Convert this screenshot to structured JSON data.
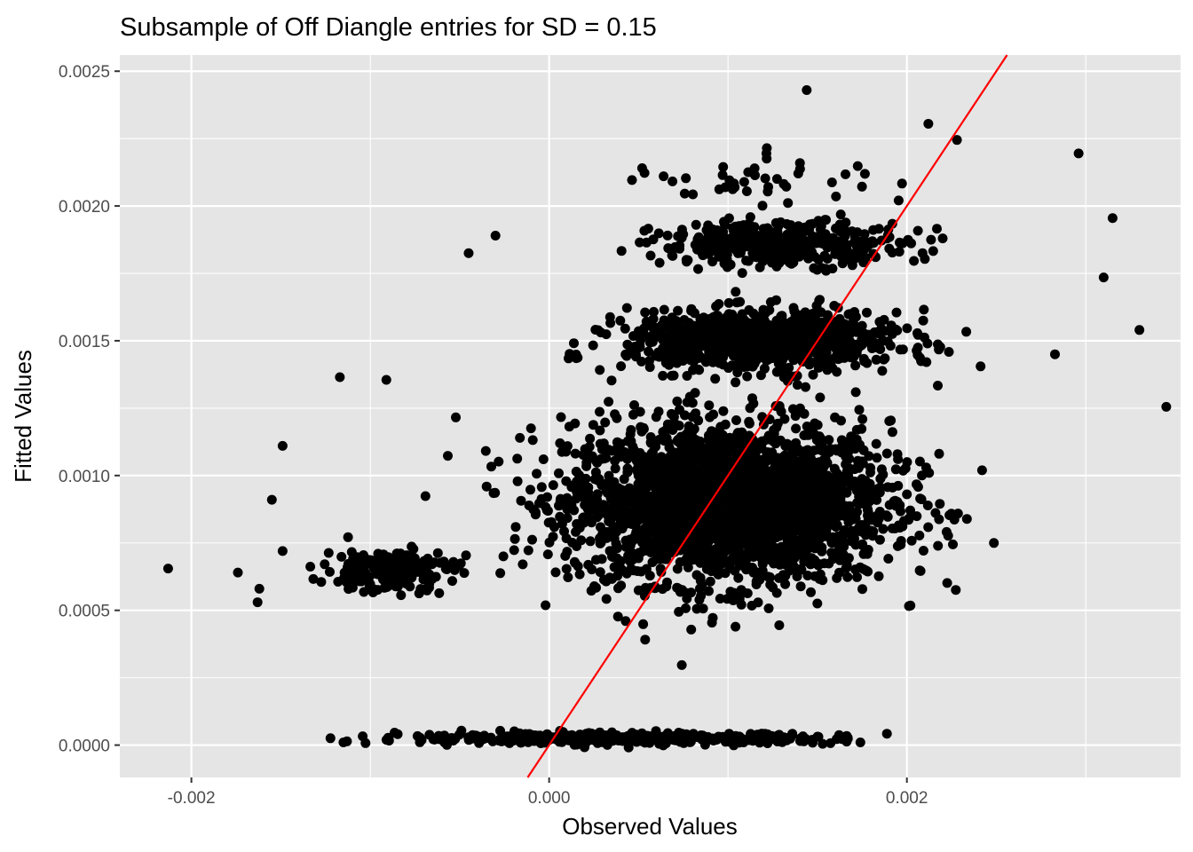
{
  "chart_data": {
    "type": "scatter",
    "title": "Subsample of Off Diangle entries for SD = 0.15",
    "xlabel": "Observed Values",
    "ylabel": "Fitted Values",
    "xlim": [
      -0.0024,
      0.00353
    ],
    "ylim": [
      -0.00012,
      0.00256
    ],
    "x_ticks": [
      {
        "value": -0.002,
        "label": "-0.002"
      },
      {
        "value": 0.0,
        "label": "0.000"
      },
      {
        "value": 0.002,
        "label": "0.002"
      }
    ],
    "y_ticks": [
      {
        "value": 0.0,
        "label": "0.0000"
      },
      {
        "value": 0.0005,
        "label": "0.0005"
      },
      {
        "value": 0.001,
        "label": "0.0010"
      },
      {
        "value": 0.0015,
        "label": "0.0015"
      },
      {
        "value": 0.002,
        "label": "0.0020"
      },
      {
        "value": 0.0025,
        "label": "0.0025"
      }
    ],
    "grid": true,
    "point_color": "#000000",
    "background_color": "#e5e5e5",
    "grid_color": "#ffffff",
    "reference_line": {
      "intercept": 0.0,
      "slope": 1.0,
      "color": "#ff0000"
    },
    "point_clouds": [
      {
        "x_center": 0.001,
        "y_center": 0.0009,
        "x_sd": 0.00045,
        "y_sd": 0.00015,
        "count": 2600
      },
      {
        "x_center": 0.0012,
        "y_center": 0.0015,
        "x_sd": 0.00038,
        "y_sd": 5.5e-05,
        "count": 900
      },
      {
        "x_center": 0.0013,
        "y_center": 0.00186,
        "x_sd": 0.00035,
        "y_sd": 4e-05,
        "count": 360
      },
      {
        "x_center": 0.0012,
        "y_center": 0.0021,
        "x_sd": 0.0004,
        "y_sd": 6e-05,
        "count": 45
      },
      {
        "x_center": -0.0009,
        "y_center": 0.00065,
        "x_sd": 0.00018,
        "y_sd": 4e-05,
        "count": 200
      },
      {
        "x_center": 0.0004,
        "y_center": 2.5e-05,
        "x_sd": 0.0006,
        "y_sd": 1e-05,
        "count": 420
      }
    ],
    "points": [
      {
        "x": -0.00213,
        "y": 0.000655
      },
      {
        "x": -0.00174,
        "y": 0.00064
      },
      {
        "x": -0.00162,
        "y": 0.00058
      },
      {
        "x": -0.00163,
        "y": 0.00053
      },
      {
        "x": -0.00149,
        "y": 0.00111
      },
      {
        "x": -0.00155,
        "y": 0.00091
      },
      {
        "x": -0.00149,
        "y": 0.00072
      },
      {
        "x": -0.00117,
        "y": 0.001365
      },
      {
        "x": -0.00091,
        "y": 0.001355
      },
      {
        "x": 0.00144,
        "y": 0.00243
      },
      {
        "x": 0.00212,
        "y": 0.002305
      },
      {
        "x": 0.00228,
        "y": 0.002245
      },
      {
        "x": 0.00296,
        "y": 0.002195
      },
      {
        "x": 0.00315,
        "y": 0.001955
      },
      {
        "x": 0.0033,
        "y": 0.00154
      },
      {
        "x": 0.00345,
        "y": 0.001255
      },
      {
        "x": 0.0031,
        "y": 0.001735
      },
      {
        "x": -0.00115,
        "y": 1e-05
      },
      {
        "x": 0.00174,
        "y": 1e-05
      },
      {
        "x": -0.00045,
        "y": 0.001825
      },
      {
        "x": -0.0003,
        "y": 0.00189
      }
    ]
  }
}
